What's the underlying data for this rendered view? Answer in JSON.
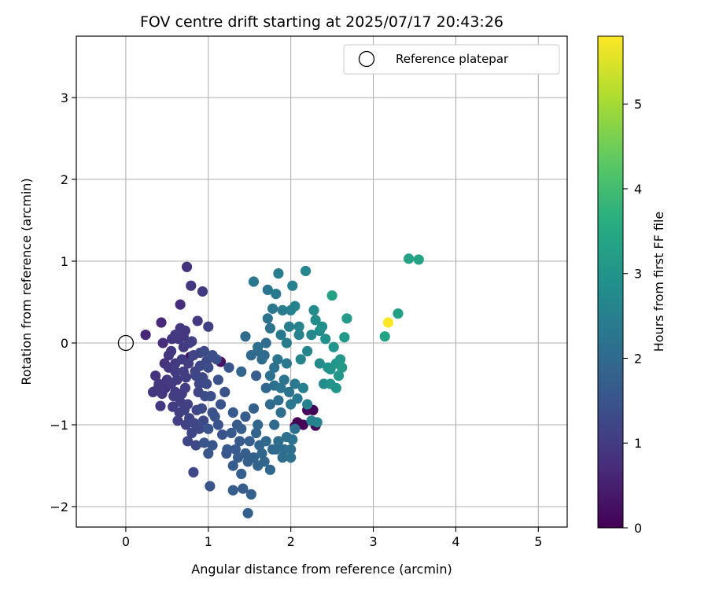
{
  "chart_data": {
    "type": "scatter",
    "title": "FOV centre drift starting at 2025/07/17 20:43:26",
    "xlabel": "Angular distance from reference (arcmin)",
    "ylabel": "Rotation from reference (arcmin)",
    "xlim": [
      -0.6,
      5.35
    ],
    "ylim": [
      -2.25,
      3.75
    ],
    "xticks": [
      0,
      1,
      2,
      3,
      4,
      5
    ],
    "yticks": [
      -2,
      -1,
      0,
      1,
      2,
      3
    ],
    "grid": true,
    "legend": {
      "placement": "top-right",
      "entries": [
        "Reference platepar"
      ]
    },
    "reference_point": {
      "x": 0,
      "y": 0,
      "marker": "hollow-circle",
      "color": "#000000"
    },
    "colorbar": {
      "label": "Hours from first FF file",
      "range": [
        0,
        5.8
      ],
      "ticks": [
        0,
        1,
        2,
        3,
        4,
        5
      ],
      "colormap": "viridis"
    },
    "series": [
      {
        "points": [
          [
            2.08,
            -0.97,
            0.0
          ],
          [
            2.15,
            -1.0,
            0.05
          ],
          [
            2.27,
            -0.82,
            0.05
          ],
          [
            2.3,
            -1.01,
            0.1
          ],
          [
            2.2,
            -0.82,
            0.1
          ],
          [
            2.05,
            -1.02,
            0.1
          ],
          [
            0.78,
            -0.17,
            0.3
          ],
          [
            1.15,
            -0.23,
            0.3
          ],
          [
            0.24,
            0.1,
            0.65
          ],
          [
            0.43,
            0.25,
            0.7
          ],
          [
            0.45,
            0.0,
            0.75
          ],
          [
            0.66,
            0.47,
            0.75
          ],
          [
            0.74,
            0.93,
            0.85
          ],
          [
            0.79,
            0.7,
            0.95
          ],
          [
            0.93,
            0.63,
            1.0
          ],
          [
            0.87,
            0.27,
            1.0
          ],
          [
            1.0,
            0.2,
            1.1
          ],
          [
            0.72,
            0.15,
            0.9
          ],
          [
            0.36,
            -0.4,
            0.85
          ],
          [
            0.33,
            -0.6,
            0.9
          ],
          [
            0.42,
            -0.77,
            0.9
          ],
          [
            0.48,
            -0.55,
            0.85
          ],
          [
            0.52,
            -0.3,
            0.9
          ],
          [
            0.55,
            -0.1,
            0.95
          ],
          [
            0.6,
            0.1,
            1.0
          ],
          [
            0.62,
            -0.45,
            1.0
          ],
          [
            0.58,
            -0.65,
            1.05
          ],
          [
            0.65,
            -0.85,
            1.1
          ],
          [
            0.68,
            -0.2,
            1.0
          ],
          [
            0.7,
            -0.35,
            1.05
          ],
          [
            0.72,
            -0.55,
            1.1
          ],
          [
            0.75,
            -0.75,
            1.1
          ],
          [
            0.8,
            0.02,
            1.1
          ],
          [
            0.82,
            -0.15,
            1.2
          ],
          [
            0.85,
            -0.4,
            1.2
          ],
          [
            0.88,
            -0.6,
            1.2
          ],
          [
            0.9,
            -0.28,
            1.25
          ],
          [
            0.92,
            -0.8,
            1.3
          ],
          [
            0.95,
            -0.1,
            1.3
          ],
          [
            0.98,
            -0.5,
            1.3
          ],
          [
            1.0,
            -0.3,
            1.35
          ],
          [
            1.03,
            -0.65,
            1.4
          ],
          [
            1.05,
            -0.15,
            1.4
          ],
          [
            0.6,
            -0.25,
            1.0
          ],
          [
            0.55,
            -0.5,
            1.0
          ],
          [
            0.64,
            0.05,
            0.95
          ],
          [
            0.7,
            -0.05,
            1.0
          ],
          [
            0.76,
            -0.25,
            1.05
          ],
          [
            0.5,
            -0.45,
            0.9
          ],
          [
            0.47,
            -0.25,
            0.85
          ],
          [
            0.4,
            -0.5,
            0.9
          ],
          [
            0.44,
            -0.62,
            0.9
          ],
          [
            0.38,
            -0.57,
            0.95
          ],
          [
            0.57,
            -0.78,
            1.0
          ],
          [
            0.63,
            -0.95,
            1.1
          ],
          [
            0.73,
            -1.0,
            1.15
          ],
          [
            0.8,
            -1.1,
            1.2
          ],
          [
            0.85,
            -1.25,
            1.25
          ],
          [
            0.75,
            -1.2,
            1.2
          ],
          [
            0.82,
            -1.58,
            1.25
          ],
          [
            0.68,
            -0.62,
            1.05
          ],
          [
            0.6,
            -0.35,
            1.0
          ],
          [
            0.73,
            -0.42,
            1.05
          ],
          [
            0.66,
            0.18,
            0.95
          ],
          [
            0.7,
            0.08,
            0.95
          ],
          [
            0.77,
            0.0,
            1.0
          ],
          [
            0.84,
            -0.35,
            1.15
          ],
          [
            0.9,
            -0.12,
            1.2
          ],
          [
            1.1,
            -0.2,
            1.4
          ],
          [
            1.12,
            -0.45,
            1.45
          ],
          [
            1.2,
            -0.6,
            1.5
          ],
          [
            1.15,
            -0.75,
            1.5
          ],
          [
            1.08,
            -0.9,
            1.5
          ],
          [
            1.0,
            -1.05,
            1.5
          ],
          [
            0.95,
            -1.22,
            1.55
          ],
          [
            1.05,
            -1.25,
            1.55
          ],
          [
            1.0,
            -1.35,
            1.55
          ],
          [
            1.02,
            -1.75,
            1.55
          ],
          [
            1.25,
            -0.3,
            1.55
          ],
          [
            1.3,
            -0.85,
            1.6
          ],
          [
            1.35,
            -1.0,
            1.6
          ],
          [
            1.28,
            -1.1,
            1.6
          ],
          [
            1.23,
            -1.3,
            1.6
          ],
          [
            1.38,
            -1.2,
            1.65
          ],
          [
            1.33,
            -1.3,
            1.65
          ],
          [
            1.45,
            -0.9,
            1.7
          ],
          [
            1.4,
            -1.05,
            1.7
          ],
          [
            1.3,
            -1.8,
            1.7
          ],
          [
            1.42,
            -1.78,
            1.7
          ],
          [
            1.5,
            -1.2,
            1.75
          ],
          [
            1.48,
            -1.45,
            1.75
          ],
          [
            1.55,
            -1.4,
            1.8
          ],
          [
            1.52,
            -1.85,
            1.8
          ],
          [
            1.48,
            -2.08,
            1.8
          ],
          [
            1.4,
            -1.6,
            1.75
          ],
          [
            1.36,
            -1.4,
            1.7
          ],
          [
            1.58,
            -1.1,
            1.85
          ],
          [
            1.62,
            -1.25,
            1.85
          ],
          [
            1.58,
            -0.4,
            1.7
          ],
          [
            1.55,
            -0.8,
            1.8
          ],
          [
            1.6,
            -1.0,
            1.9
          ],
          [
            1.65,
            -1.35,
            1.9
          ],
          [
            1.7,
            -1.2,
            1.95
          ],
          [
            1.75,
            -1.55,
            1.95
          ],
          [
            1.78,
            -1.3,
            2.0
          ],
          [
            1.8,
            -1.0,
            2.0
          ],
          [
            1.85,
            -1.2,
            2.05
          ],
          [
            1.9,
            -1.4,
            2.05
          ],
          [
            1.95,
            -1.15,
            2.1
          ],
          [
            2.0,
            -1.3,
            2.1
          ],
          [
            2.05,
            -1.05,
            2.15
          ],
          [
            2.0,
            -1.4,
            2.15
          ],
          [
            1.88,
            -0.85,
            2.1
          ],
          [
            1.7,
            -0.55,
            1.95
          ],
          [
            1.75,
            -0.75,
            2.0
          ],
          [
            1.8,
            -0.52,
            2.1
          ],
          [
            1.85,
            -0.7,
            2.1
          ],
          [
            1.92,
            -0.45,
            2.2
          ],
          [
            1.98,
            -0.6,
            2.2
          ],
          [
            2.0,
            -0.75,
            2.3
          ],
          [
            2.05,
            -0.5,
            2.3
          ],
          [
            2.08,
            -0.68,
            2.35
          ],
          [
            1.95,
            -0.25,
            2.3
          ],
          [
            1.65,
            -0.2,
            2.0
          ],
          [
            1.6,
            -0.1,
            2.0
          ],
          [
            1.7,
            0.0,
            2.05
          ],
          [
            1.72,
            0.3,
            2.2
          ],
          [
            1.75,
            0.18,
            2.2
          ],
          [
            1.78,
            0.42,
            2.3
          ],
          [
            1.82,
            0.6,
            2.35
          ],
          [
            1.85,
            0.85,
            2.4
          ],
          [
            1.88,
            0.1,
            2.35
          ],
          [
            1.9,
            0.4,
            2.4
          ],
          [
            1.95,
            0.0,
            2.4
          ],
          [
            1.98,
            0.2,
            2.45
          ],
          [
            2.0,
            0.4,
            2.5
          ],
          [
            2.02,
            0.7,
            2.5
          ],
          [
            2.05,
            0.45,
            2.55
          ],
          [
            2.1,
            0.2,
            2.6
          ],
          [
            2.18,
            0.88,
            2.65
          ],
          [
            2.2,
            -0.1,
            2.6
          ],
          [
            2.25,
            0.1,
            2.7
          ],
          [
            2.28,
            0.4,
            2.75
          ],
          [
            2.3,
            0.28,
            2.8
          ],
          [
            2.35,
            -0.25,
            2.75
          ],
          [
            2.38,
            0.2,
            2.85
          ],
          [
            2.42,
            0.05,
            2.9
          ],
          [
            2.45,
            -0.3,
            2.9
          ],
          [
            2.48,
            -0.5,
            2.95
          ],
          [
            2.5,
            0.58,
            3.3
          ],
          [
            2.52,
            -0.05,
            3.0
          ],
          [
            2.55,
            -0.25,
            3.0
          ],
          [
            2.58,
            -0.4,
            3.05
          ],
          [
            2.6,
            -0.2,
            3.05
          ],
          [
            2.62,
            -0.3,
            3.1
          ],
          [
            2.65,
            0.07,
            3.1
          ],
          [
            2.68,
            0.3,
            3.15
          ],
          [
            1.55,
            0.75,
            2.3
          ],
          [
            1.6,
            -0.05,
            2.1
          ],
          [
            1.45,
            0.08,
            2.0
          ],
          [
            1.4,
            -0.35,
            1.9
          ],
          [
            1.52,
            -0.15,
            2.0
          ],
          [
            1.68,
            -0.15,
            2.05
          ],
          [
            1.8,
            -0.3,
            2.15
          ],
          [
            1.84,
            -0.2,
            2.2
          ],
          [
            1.75,
            -0.4,
            2.15
          ],
          [
            1.88,
            -0.55,
            2.25
          ],
          [
            1.72,
            0.65,
            2.25
          ],
          [
            2.12,
            -0.2,
            2.6
          ],
          [
            2.15,
            -0.55,
            2.5
          ],
          [
            2.2,
            -0.75,
            2.55
          ],
          [
            2.25,
            -0.95,
            2.55
          ],
          [
            2.32,
            -0.97,
            2.6
          ],
          [
            2.4,
            -0.5,
            2.75
          ],
          [
            2.48,
            -0.32,
            2.95
          ],
          [
            2.55,
            -0.55,
            3.0
          ],
          [
            2.35,
            0.15,
            2.8
          ],
          [
            2.1,
            0.1,
            2.55
          ],
          [
            3.14,
            0.08,
            3.35
          ],
          [
            3.18,
            0.25,
            5.8
          ],
          [
            3.3,
            0.36,
            3.25
          ],
          [
            3.43,
            1.03,
            3.3
          ],
          [
            3.55,
            1.02,
            3.35
          ],
          [
            0.98,
            -0.22,
            1.3
          ],
          [
            0.93,
            -0.42,
            1.25
          ],
          [
            0.89,
            -0.5,
            1.25
          ],
          [
            0.96,
            -0.65,
            1.35
          ],
          [
            1.05,
            -0.85,
            1.45
          ],
          [
            1.12,
            -1.0,
            1.5
          ],
          [
            1.17,
            -1.12,
            1.5
          ],
          [
            1.22,
            -1.35,
            1.55
          ],
          [
            1.3,
            -1.5,
            1.65
          ],
          [
            1.45,
            -1.35,
            1.7
          ],
          [
            1.6,
            -1.5,
            1.85
          ],
          [
            1.68,
            -1.45,
            1.9
          ],
          [
            1.82,
            -1.3,
            2.0
          ],
          [
            1.92,
            -1.3,
            2.05
          ],
          [
            2.02,
            -1.18,
            2.15
          ],
          [
            0.52,
            -0.15,
            0.9
          ],
          [
            0.56,
            0.05,
            0.9
          ],
          [
            0.6,
            -0.6,
            1.0
          ],
          [
            0.66,
            -0.72,
            1.05
          ],
          [
            0.71,
            -0.82,
            1.1
          ],
          [
            0.77,
            -0.92,
            1.15
          ],
          [
            0.83,
            -0.98,
            1.2
          ],
          [
            0.89,
            -1.05,
            1.25
          ],
          [
            0.94,
            -0.95,
            1.3
          ],
          [
            0.86,
            -0.82,
            1.2
          ]
        ]
      }
    ]
  }
}
